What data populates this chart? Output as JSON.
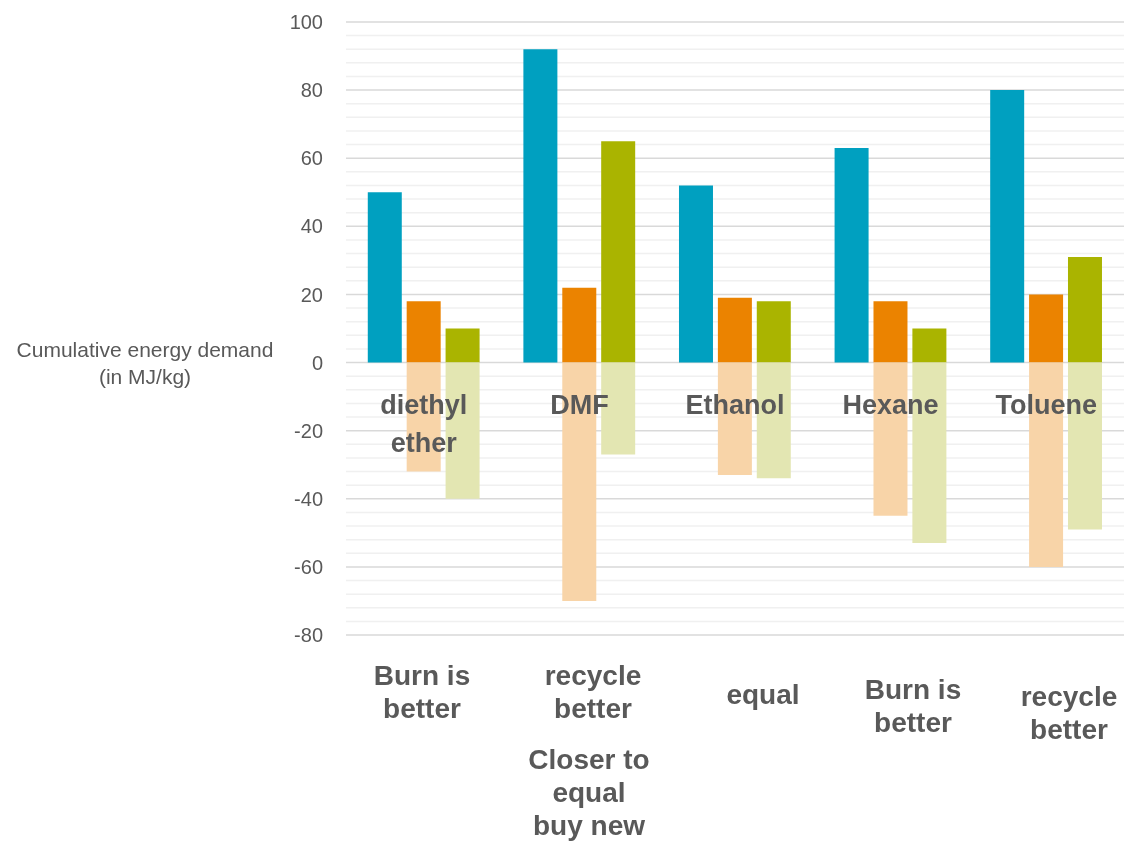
{
  "chart_data": {
    "type": "bar",
    "ylabel": "Cumulative energy demand (in MJ/kg)",
    "categories": [
      null,
      "diethyl ether",
      null,
      null,
      null,
      "DMF",
      null,
      null,
      null,
      "Ethanol",
      null,
      null,
      null,
      "Hexane",
      null,
      null,
      null,
      "Toluene",
      null
    ],
    "series": [
      {
        "color": "#00a0c0",
        "values": [
          50,
          null,
          null,
          null,
          92,
          null,
          null,
          null,
          52,
          null,
          null,
          null,
          63,
          null,
          null,
          null,
          80,
          null,
          null
        ]
      },
      {
        "color": "#eb8300",
        "values": [
          null,
          18,
          null,
          null,
          null,
          22,
          null,
          null,
          null,
          19,
          null,
          null,
          null,
          18,
          null,
          null,
          null,
          20,
          null
        ]
      },
      {
        "color": "#aab400",
        "values": [
          null,
          null,
          10,
          null,
          null,
          null,
          65,
          null,
          null,
          null,
          18,
          null,
          null,
          null,
          10,
          null,
          null,
          null,
          31
        ]
      },
      {
        "color": "#f8d4a8",
        "values": [
          null,
          -32,
          null,
          null,
          null,
          -70,
          null,
          null,
          null,
          -33,
          null,
          null,
          null,
          -45,
          null,
          null,
          null,
          -60,
          null
        ]
      },
      {
        "color": "#e3e6b2",
        "values": [
          null,
          null,
          -40,
          null,
          null,
          null,
          -27,
          null,
          null,
          null,
          -34,
          null,
          null,
          null,
          -53,
          null,
          null,
          null,
          -49
        ]
      }
    ],
    "stacked": true,
    "ylim": [
      -80,
      100
    ],
    "yticks": [
      -80,
      {
        "value": -76,
        "label": null
      },
      {
        "value": -72,
        "label": null
      },
      {
        "value": -68,
        "label": null
      },
      {
        "value": -64,
        "label": null
      },
      -60,
      {
        "value": -56,
        "label": null
      },
      {
        "value": -52,
        "label": null
      },
      {
        "value": -48,
        "label": null
      },
      {
        "value": -44,
        "label": null
      },
      -40,
      {
        "value": -36,
        "label": null
      },
      {
        "value": -32,
        "label": null
      },
      {
        "value": -28,
        "label": null
      },
      {
        "value": -24,
        "label": null
      },
      -20,
      {
        "value": -16,
        "label": null
      },
      {
        "value": -12,
        "label": null
      },
      {
        "value": -8,
        "label": null
      },
      {
        "value": -4,
        "label": null
      },
      0,
      {
        "value": 4,
        "label": null
      },
      {
        "value": 8,
        "label": null
      },
      {
        "value": 12,
        "label": null
      },
      {
        "value": 16,
        "label": null
      },
      20,
      {
        "value": 24,
        "label": null
      },
      {
        "value": 28,
        "label": null
      },
      {
        "value": 32,
        "label": null
      },
      {
        "value": 36,
        "label": null
      },
      40,
      {
        "value": 44,
        "label": null
      },
      {
        "value": 48,
        "label": null
      },
      {
        "value": 52,
        "label": null
      },
      {
        "value": 56,
        "label": null
      },
      60,
      {
        "value": 64,
        "label": null
      },
      {
        "value": 68,
        "label": null
      },
      {
        "value": 72,
        "label": null
      },
      {
        "value": 76,
        "label": null
      },
      80,
      {
        "value": 84,
        "label": null
      },
      {
        "value": 88,
        "label": null
      },
      {
        "value": 92,
        "label": null
      },
      {
        "value": 96,
        "label": null
      },
      100
    ],
    "grid": "y",
    "annotations": [
      "Burn is better",
      "recycle better",
      "equal",
      "Burn is better",
      "recycle better",
      "Closer to equal buy new"
    ]
  }
}
